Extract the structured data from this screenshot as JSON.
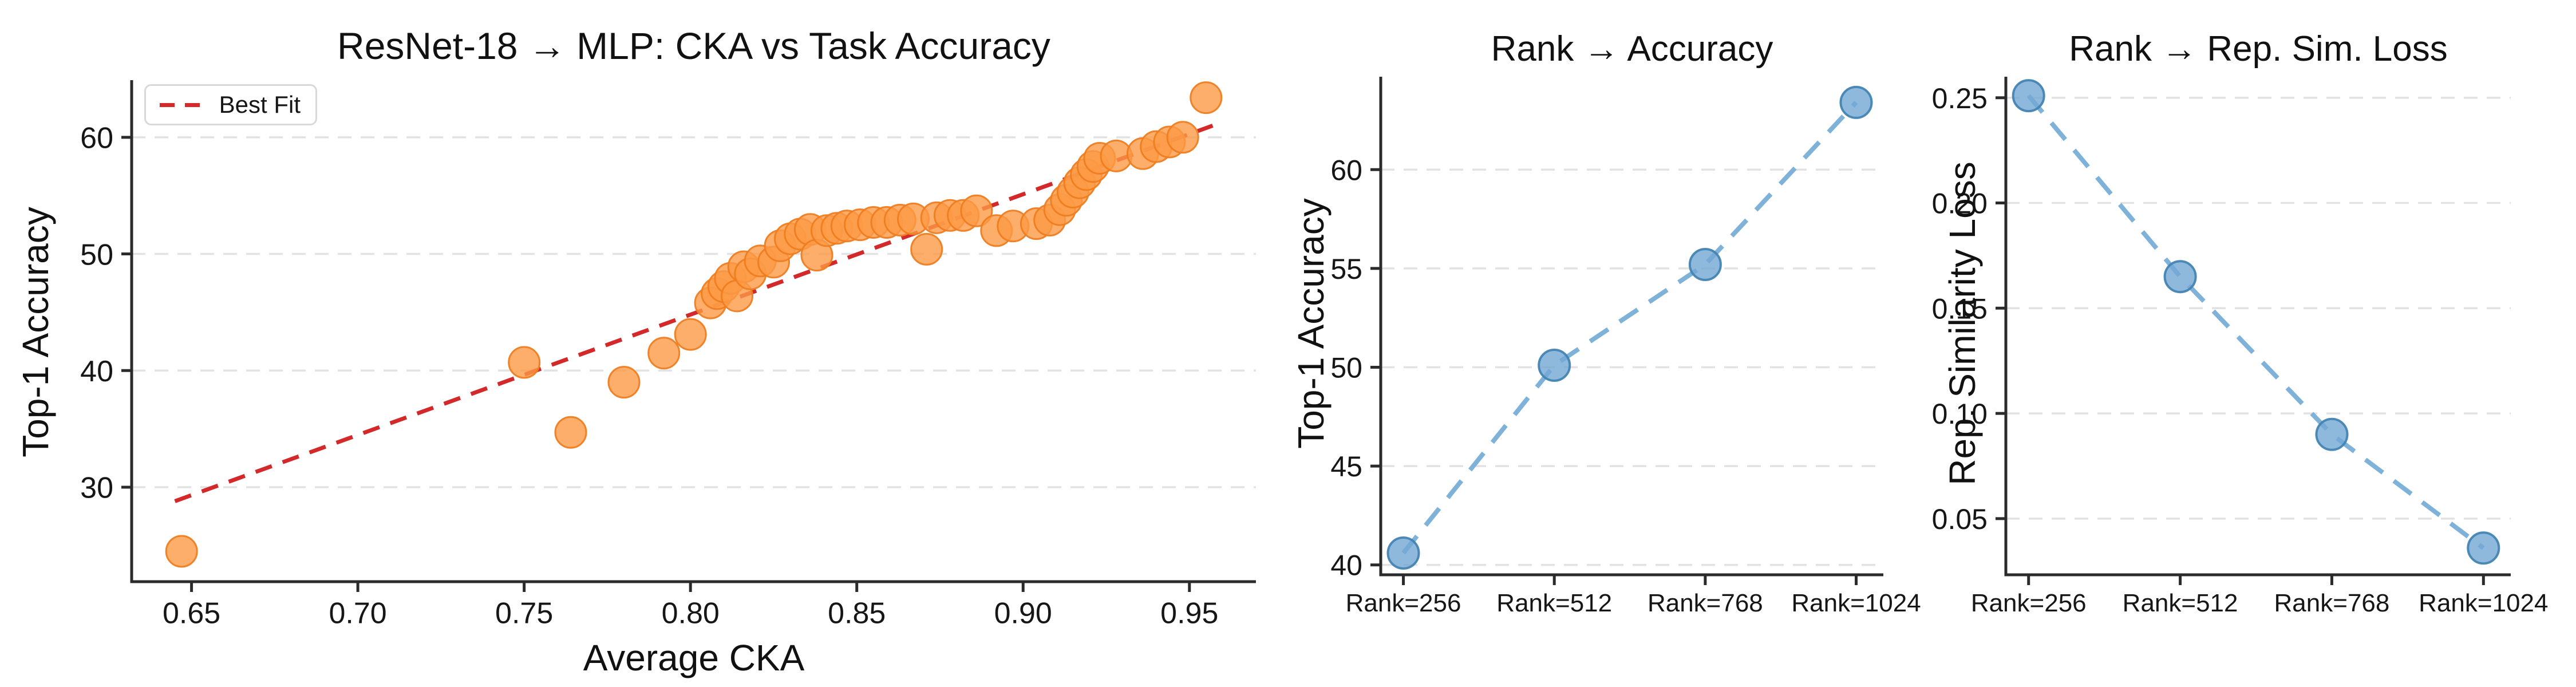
{
  "figure": {
    "background": "#ffffff",
    "text_color": "#161616",
    "grid_color": "#e2e2e2",
    "spine_color": "#2b2b2b"
  },
  "chart_data": [
    {
      "id": "cka-vs-accuracy",
      "type": "scatter",
      "title": "ResNet-18 → MLP: CKA vs Task Accuracy",
      "xlabel": "Average CKA",
      "ylabel": "Top-1 Accuracy",
      "xlim": [
        0.632,
        0.97
      ],
      "ylim": [
        21.9,
        64.9
      ],
      "xticks": [
        0.65,
        0.7,
        0.75,
        0.8,
        0.85,
        0.9,
        0.95
      ],
      "xtick_labels": [
        "0.65",
        "0.70",
        "0.75",
        "0.80",
        "0.85",
        "0.90",
        "0.95"
      ],
      "yticks": [
        30,
        40,
        50,
        60
      ],
      "ytick_labels": [
        "30",
        "40",
        "50",
        "60"
      ],
      "grid": "y",
      "legend": {
        "label": "Best Fit",
        "position": "upper-left"
      },
      "marker": {
        "fill": "#fd9a46",
        "stroke": "#ef7d20",
        "radius": 27,
        "opacity": 0.8
      },
      "fit_line": {
        "color": "#d3292b",
        "x": [
          0.645,
          0.957
        ],
        "y": [
          28.8,
          61.0
        ],
        "style": "dashed"
      },
      "points": [
        [
          0.647,
          24.5
        ],
        [
          0.75,
          40.7
        ],
        [
          0.764,
          34.7
        ],
        [
          0.78,
          39.0
        ],
        [
          0.792,
          41.5
        ],
        [
          0.8,
          43.1
        ],
        [
          0.806,
          45.8
        ],
        [
          0.808,
          46.6
        ],
        [
          0.81,
          47.2
        ],
        [
          0.812,
          47.9
        ],
        [
          0.814,
          46.4
        ],
        [
          0.816,
          48.9
        ],
        [
          0.818,
          48.3
        ],
        [
          0.821,
          49.4
        ],
        [
          0.825,
          49.3
        ],
        [
          0.827,
          50.7
        ],
        [
          0.83,
          51.3
        ],
        [
          0.833,
          51.7
        ],
        [
          0.836,
          52.1
        ],
        [
          0.838,
          49.9
        ],
        [
          0.841,
          52.0
        ],
        [
          0.844,
          52.2
        ],
        [
          0.847,
          52.4
        ],
        [
          0.851,
          52.5
        ],
        [
          0.855,
          52.7
        ],
        [
          0.859,
          52.7
        ],
        [
          0.863,
          52.9
        ],
        [
          0.867,
          53.0
        ],
        [
          0.871,
          50.4
        ],
        [
          0.874,
          53.1
        ],
        [
          0.878,
          53.3
        ],
        [
          0.882,
          53.3
        ],
        [
          0.886,
          53.7
        ],
        [
          0.892,
          52.0
        ],
        [
          0.897,
          52.4
        ],
        [
          0.904,
          52.6
        ],
        [
          0.908,
          52.9
        ],
        [
          0.911,
          53.8
        ],
        [
          0.913,
          54.6
        ],
        [
          0.915,
          55.3
        ],
        [
          0.917,
          56.1
        ],
        [
          0.919,
          56.8
        ],
        [
          0.921,
          57.5
        ],
        [
          0.923,
          58.2
        ],
        [
          0.928,
          58.4
        ],
        [
          0.936,
          58.6
        ],
        [
          0.94,
          59.2
        ],
        [
          0.944,
          59.6
        ],
        [
          0.948,
          60.0
        ],
        [
          0.955,
          63.4
        ]
      ]
    },
    {
      "id": "rank-accuracy",
      "type": "line",
      "title": "Rank → Accuracy",
      "ylabel": "Top-1 Accuracy",
      "categories": [
        "Rank=256",
        "Rank=512",
        "Rank=768",
        "Rank=1024"
      ],
      "values": [
        40.6,
        50.1,
        55.2,
        63.4
      ],
      "ylim": [
        39.5,
        64.7
      ],
      "yticks": [
        40,
        45,
        50,
        55,
        60
      ],
      "ytick_labels": [
        "40",
        "45",
        "50",
        "55",
        "60"
      ],
      "grid": "y",
      "line": {
        "color": "#7fb2d9",
        "style": "dashed",
        "width": 8
      },
      "marker": {
        "fill": "#72a8d3",
        "stroke": "#4484b2",
        "radius": 27,
        "opacity": 0.8
      }
    },
    {
      "id": "rank-repsim-loss",
      "type": "line",
      "title": "Rank → Rep. Sim. Loss",
      "ylabel": "Rep. Similarity Loss",
      "categories": [
        "Rank=256",
        "Rank=512",
        "Rank=768",
        "Rank=1024"
      ],
      "values": [
        0.251,
        0.165,
        0.09,
        0.036
      ],
      "ylim": [
        0.0233,
        0.26
      ],
      "yticks": [
        0.05,
        0.1,
        0.15,
        0.2,
        0.25
      ],
      "ytick_labels": [
        "0.05",
        "0.10",
        "0.15",
        "0.20",
        "0.25"
      ],
      "grid": "y",
      "line": {
        "color": "#7fb2d9",
        "style": "dashed",
        "width": 8
      },
      "marker": {
        "fill": "#72a8d3",
        "stroke": "#4484b2",
        "radius": 27,
        "opacity": 0.8
      }
    }
  ]
}
